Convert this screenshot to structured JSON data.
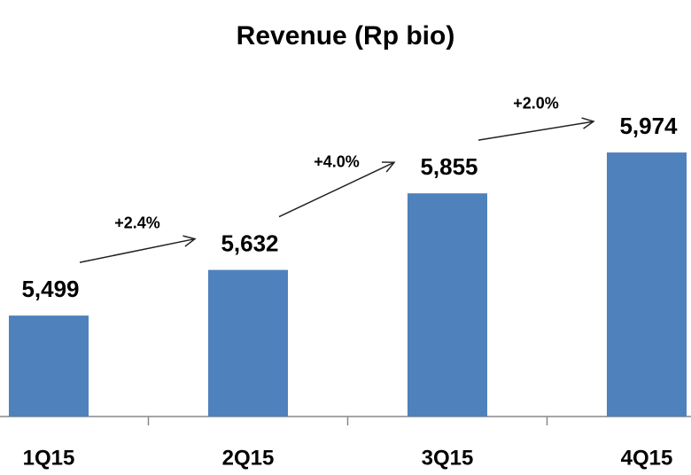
{
  "chart_data": {
    "type": "bar",
    "title": "Revenue (Rp bio)",
    "categories": [
      "1Q15",
      "2Q15",
      "3Q15",
      "4Q15"
    ],
    "values": [
      5499,
      5632,
      5855,
      5974
    ],
    "value_labels": [
      "5,499",
      "5,632",
      "5,855",
      "5,974"
    ],
    "annotations": [
      "+2.4%",
      "+4.0%",
      "+2.0%"
    ],
    "color": "#4f81bd",
    "ylim": [
      5205,
      6000
    ]
  }
}
